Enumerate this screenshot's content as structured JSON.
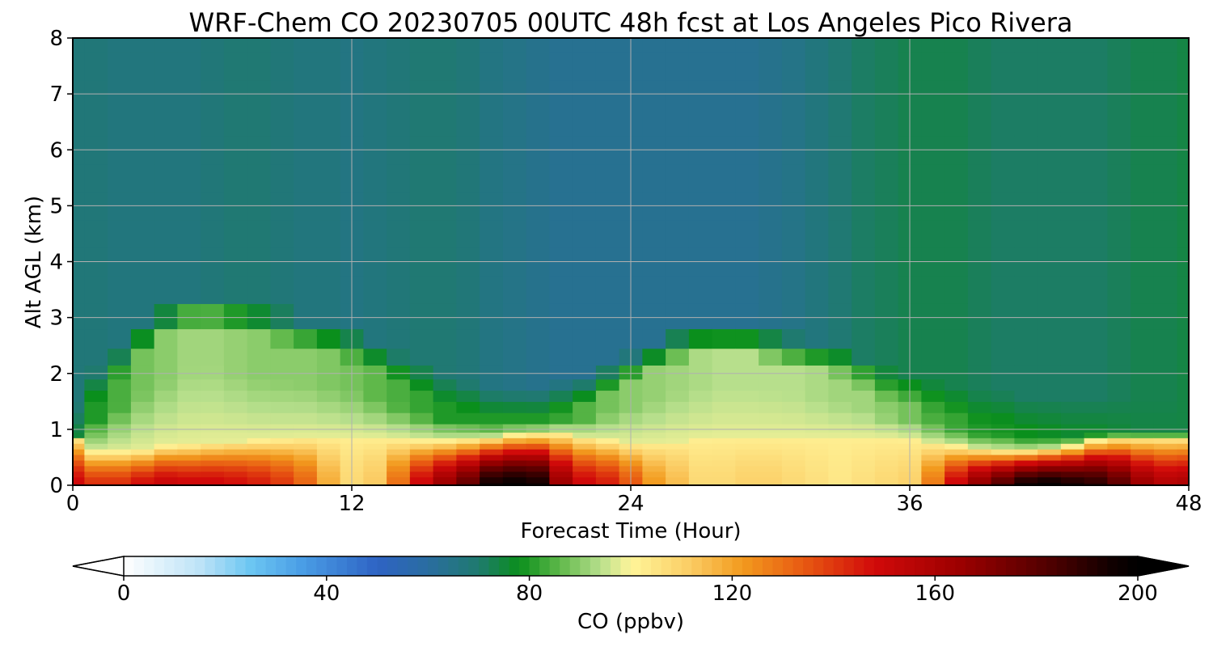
{
  "chart_data": {
    "type": "heatmap",
    "title": "WRF-Chem CO  20230705 00UTC 48h fcst at Los Angeles Pico Rivera",
    "xlabel": "Forecast Time (Hour)",
    "ylabel": "Alt AGL (km)",
    "xlim": [
      0,
      48
    ],
    "ylim": [
      0,
      8
    ],
    "x_ticks": [
      0,
      12,
      24,
      36,
      48
    ],
    "y_ticks": [
      0,
      1,
      2,
      3,
      4,
      5,
      6,
      7,
      8
    ],
    "grid": true,
    "colorbar": {
      "label": "CO  (ppbv)",
      "range": [
        0,
        200
      ],
      "ticks": [
        0,
        40,
        80,
        120,
        160,
        200
      ],
      "extend": "both",
      "orientation": "horizontal",
      "placement": "bottom",
      "color_stops": [
        {
          "value": 0,
          "color": "#ffffff"
        },
        {
          "value": 15,
          "color": "#bde3f7"
        },
        {
          "value": 25,
          "color": "#6cc6f2"
        },
        {
          "value": 35,
          "color": "#4a9ee6"
        },
        {
          "value": 50,
          "color": "#2e63c4"
        },
        {
          "value": 60,
          "color": "#2a6da0"
        },
        {
          "value": 70,
          "color": "#1f7a6e"
        },
        {
          "value": 78,
          "color": "#0a8f1c"
        },
        {
          "value": 86,
          "color": "#5fb84a"
        },
        {
          "value": 94,
          "color": "#b7df8c"
        },
        {
          "value": 100,
          "color": "#fff59a"
        },
        {
          "value": 112,
          "color": "#fbcb62"
        },
        {
          "value": 122,
          "color": "#f29a1e"
        },
        {
          "value": 134,
          "color": "#e85a12"
        },
        {
          "value": 148,
          "color": "#d10a0a"
        },
        {
          "value": 165,
          "color": "#9c0000"
        },
        {
          "value": 182,
          "color": "#520000"
        },
        {
          "value": 195,
          "color": "#100000"
        },
        {
          "value": 200,
          "color": "#000000"
        }
      ]
    },
    "x_hours": [
      0,
      1,
      2,
      3,
      4,
      5,
      6,
      7,
      8,
      9,
      10,
      11,
      12,
      13,
      14,
      15,
      16,
      17,
      18,
      19,
      20,
      21,
      22,
      23,
      24,
      25,
      26,
      27,
      28,
      29,
      30,
      31,
      32,
      33,
      34,
      35,
      36,
      37,
      38,
      39,
      40,
      41,
      42,
      43,
      44,
      45,
      46,
      47,
      48
    ],
    "altitudes_km": [
      0,
      0.1,
      0.2,
      0.3,
      0.4,
      0.5,
      0.6,
      0.7,
      0.8,
      0.9,
      1,
      1.2,
      1.4,
      1.6,
      1.8,
      2,
      2.3,
      2.6,
      3,
      3.5,
      4,
      4.5,
      5,
      5.5,
      6,
      6.5,
      7,
      7.5,
      8
    ],
    "surface_peak_ppbv": [
      150,
      142,
      142,
      148,
      152,
      150,
      150,
      148,
      145,
      140,
      132,
      118,
      108,
      112,
      130,
      150,
      165,
      178,
      195,
      198,
      195,
      165,
      150,
      145,
      135,
      122,
      115,
      108,
      108,
      110,
      110,
      108,
      106,
      104,
      106,
      108,
      110,
      128,
      150,
      168,
      182,
      195,
      198,
      194,
      190,
      180,
      165,
      158,
      160
    ],
    "mixing_top_km": [
      0.85,
      0.6,
      0.6,
      0.62,
      0.7,
      0.72,
      0.75,
      0.78,
      0.8,
      0.82,
      0.85,
      0.85,
      0.85,
      0.85,
      0.82,
      0.8,
      0.8,
      0.82,
      0.85,
      0.9,
      0.92,
      0.92,
      0.85,
      0.8,
      0.75,
      0.75,
      0.78,
      0.82,
      0.85,
      0.85,
      0.85,
      0.85,
      0.85,
      0.85,
      0.85,
      0.85,
      0.82,
      0.75,
      0.7,
      0.65,
      0.62,
      0.62,
      0.65,
      0.7,
      0.8,
      0.85,
      0.85,
      0.85,
      0.85
    ],
    "elevated_layer_top_km": [
      0.9,
      1.5,
      1.9,
      2.3,
      2.6,
      2.8,
      2.8,
      2.7,
      2.6,
      2.5,
      2.4,
      2.3,
      2.2,
      2.0,
      1.8,
      1.6,
      1.4,
      1.3,
      1.2,
      1.2,
      1.2,
      1.3,
      1.4,
      1.6,
      1.8,
      2.0,
      2.2,
      2.3,
      2.3,
      2.3,
      2.2,
      2.1,
      2.0,
      1.9,
      1.7,
      1.5,
      1.4,
      1.3,
      1.2,
      1.1,
      1.1,
      1.0,
      1.0,
      1.0,
      1.0,
      1.0,
      1.0,
      1.0,
      1.0
    ],
    "elevated_layer_peak_ppbv": [
      75,
      80,
      84,
      88,
      90,
      92,
      92,
      91,
      90,
      90,
      90,
      89,
      88,
      86,
      84,
      82,
      80,
      80,
      80,
      80,
      80,
      82,
      85,
      88,
      90,
      91,
      92,
      93,
      94,
      94,
      94,
      94,
      93,
      92,
      92,
      90,
      88,
      84,
      82,
      80,
      79,
      78,
      77,
      76,
      76,
      75,
      74,
      74,
      74
    ],
    "upper_background_ppbv": [
      68,
      68,
      67,
      67,
      67,
      67,
      68,
      69,
      69,
      68,
      67,
      67,
      66,
      67,
      68,
      69,
      69,
      68,
      66,
      65,
      64,
      63,
      63,
      63,
      63,
      63,
      63,
      63,
      63,
      63,
      64,
      65,
      67,
      69,
      71,
      72,
      73,
      73,
      73,
      72,
      71,
      71,
      71,
      71,
      71,
      72,
      73,
      73,
      74
    ]
  }
}
